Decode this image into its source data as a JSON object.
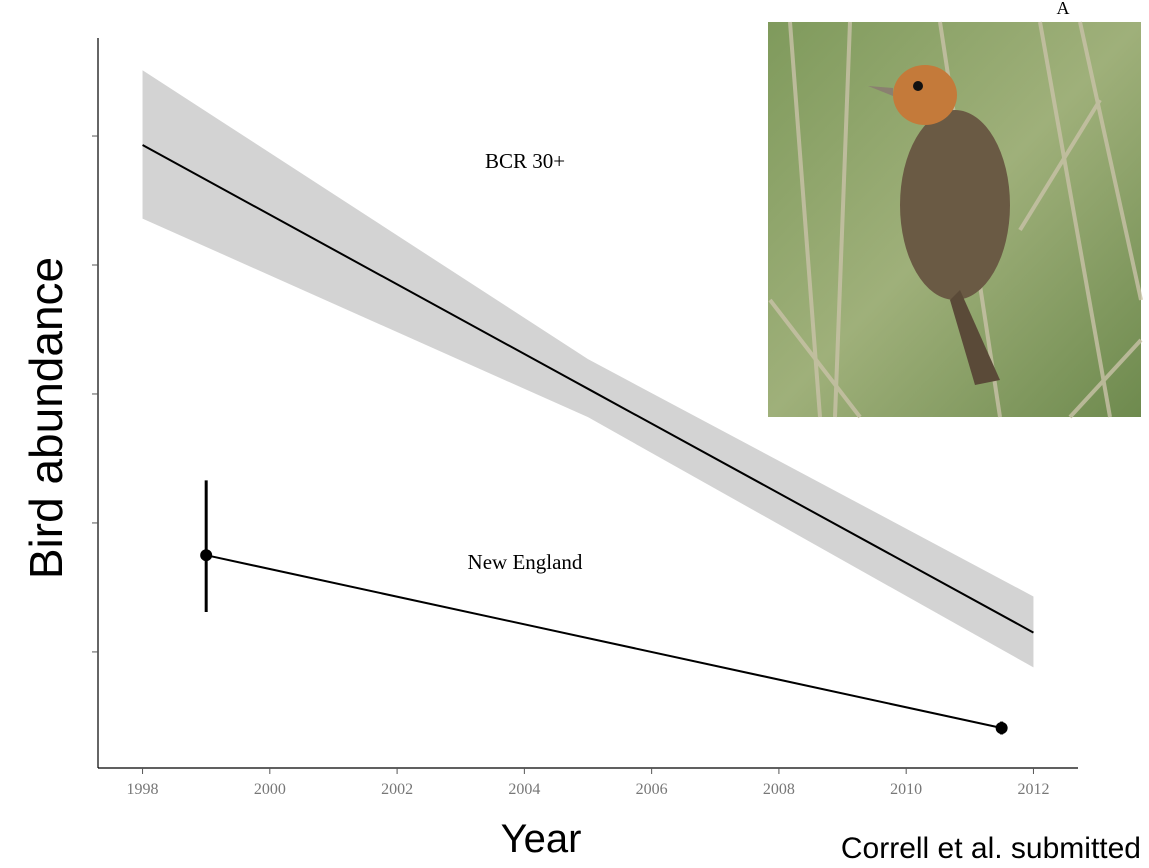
{
  "chart_data": {
    "type": "line",
    "x_label": "Year",
    "y_label": "Bird abundance",
    "source": "Correll et al. submitted",
    "panel_letter": "A",
    "xlim": [
      1997.3,
      2012.7
    ],
    "xticks": [
      1998,
      2000,
      2002,
      2004,
      2006,
      2008,
      2010,
      2012
    ],
    "ylim": [
      0.1,
      5.76
    ],
    "yticks": [
      1,
      2,
      3,
      4,
      5
    ],
    "series": [
      {
        "name": "BCR 30+",
        "color": "#000000",
        "band_color": "#d3d3d3",
        "x": [
          1998,
          2005,
          2012
        ],
        "values": [
          4.93,
          3.04,
          1.15
        ],
        "upper": [
          5.51,
          3.27,
          1.43
        ],
        "lower": [
          4.36,
          2.82,
          0.88
        ]
      },
      {
        "name": "New England",
        "color": "#000000",
        "x": [
          1999,
          2011.5
        ],
        "values": [
          1.75,
          0.41
        ],
        "yerr_minus": [
          0.44,
          0.05
        ],
        "yerr_plus": [
          0.58,
          0.05
        ]
      }
    ]
  }
}
